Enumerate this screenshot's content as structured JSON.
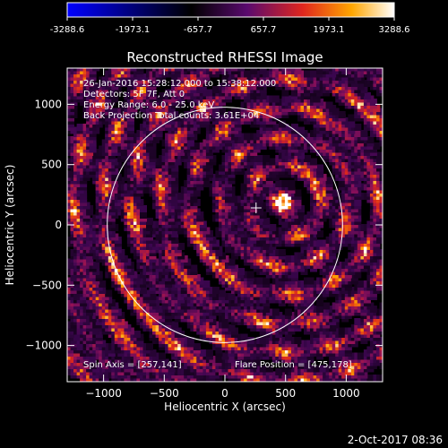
{
  "colorbar": {
    "ticks": [
      "-3288.6",
      "-1973.1",
      "-657.7",
      "657.7",
      "1973.1",
      "3288.6"
    ],
    "min": -3288.6,
    "max": 3288.6
  },
  "annotations": {
    "line1": "26-Jan-2016 15:28:12.000 to 15:38:12.000",
    "line2": "Detectors: 5F 7F, Att 0",
    "line3": "Energy Range: 6.0 - 25.0 keV",
    "line4": "Back Projection   Total counts: 3.61E+04",
    "spin_axis": "Spin Axis = [257,141]",
    "flare_position": "Flare Position = [475,178]"
  },
  "footer": {
    "date": "2-Oct-2017 08:36"
  },
  "chart_data": {
    "type": "heatmap",
    "title": "Reconstructed RHESSI Image",
    "xlabel": "Heliocentric X (arcsec)",
    "ylabel": "Heliocentric Y (arcsec)",
    "xlim": [
      -1300,
      1300
    ],
    "ylim": [
      -1300,
      1300
    ],
    "xticks": [
      -1000,
      -500,
      0,
      500,
      1000
    ],
    "yticks": [
      -1000,
      -500,
      0,
      500,
      1000
    ],
    "xtick_labels": [
      "−1000",
      "−500",
      "0",
      "500",
      "1000"
    ],
    "ytick_labels": [
      "−1000",
      "−500",
      "0",
      "500",
      "1000"
    ],
    "colormap": [
      "#0000ff",
      "#000000",
      "#5a0a6e",
      "#e0261e",
      "#ffa600",
      "#ffffff"
    ],
    "solar_limb_radius_arcsec": 970,
    "solar_limb_center": [
      0,
      0
    ],
    "spin_axis_marker": [
      257,
      141
    ],
    "flare_position": [
      475,
      178
    ]
  }
}
